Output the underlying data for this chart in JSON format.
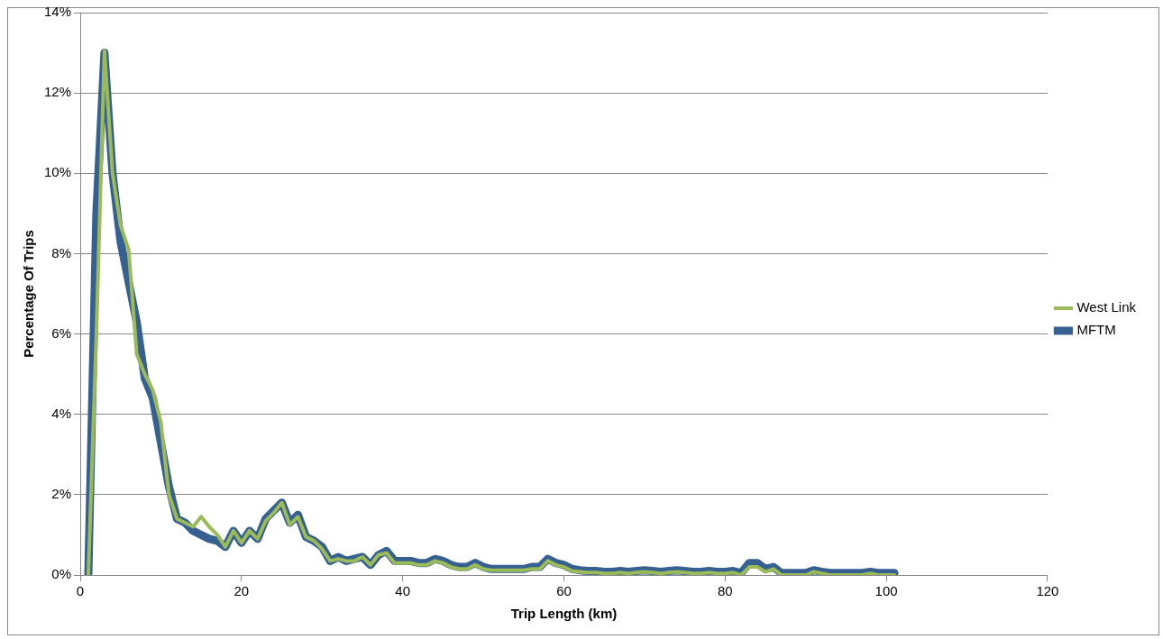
{
  "chart_data": {
    "type": "line",
    "xlabel": "Trip Length (km)",
    "ylabel": "Percentage Of Trips",
    "x": [
      1,
      2,
      3,
      4,
      5,
      6,
      7,
      8,
      9,
      10,
      11,
      12,
      13,
      14,
      15,
      16,
      17,
      18,
      19,
      20,
      21,
      22,
      23,
      24,
      25,
      26,
      27,
      28,
      29,
      30,
      31,
      32,
      33,
      34,
      35,
      36,
      37,
      38,
      39,
      40,
      41,
      42,
      43,
      44,
      45,
      46,
      47,
      48,
      49,
      50,
      51,
      52,
      53,
      54,
      55,
      56,
      57,
      58,
      59,
      60,
      61,
      62,
      63,
      64,
      65,
      66,
      67,
      68,
      69,
      70,
      71,
      72,
      73,
      74,
      75,
      76,
      77,
      78,
      79,
      80,
      81,
      82,
      83,
      84,
      85,
      86,
      87,
      88,
      89,
      90,
      91,
      92,
      93,
      94,
      95,
      96,
      97,
      98,
      99,
      100,
      101
    ],
    "series": [
      {
        "name": "MFTM",
        "color": "#376092",
        "values": [
          0,
          9,
          13,
          10,
          8.3,
          7.3,
          6.3,
          4.9,
          4.4,
          3.3,
          2.2,
          1.4,
          1.3,
          1.1,
          1,
          0.9,
          0.85,
          0.7,
          1.1,
          0.8,
          1.1,
          0.9,
          1.4,
          1.6,
          1.8,
          1.3,
          1.5,
          0.95,
          0.85,
          0.7,
          0.35,
          0.45,
          0.35,
          0.4,
          0.45,
          0.25,
          0.5,
          0.6,
          0.35,
          0.35,
          0.35,
          0.3,
          0.3,
          0.4,
          0.35,
          0.25,
          0.2,
          0.2,
          0.3,
          0.2,
          0.15,
          0.15,
          0.15,
          0.15,
          0.15,
          0.2,
          0.2,
          0.4,
          0.3,
          0.25,
          0.15,
          0.12,
          0.1,
          0.1,
          0.08,
          0.08,
          0.1,
          0.08,
          0.1,
          0.12,
          0.1,
          0.08,
          0.1,
          0.12,
          0.1,
          0.08,
          0.08,
          0.1,
          0.08,
          0.08,
          0.1,
          0.05,
          0.3,
          0.3,
          0.15,
          0.2,
          0.05,
          0.05,
          0.05,
          0.05,
          0.12,
          0.08,
          0.05,
          0.05,
          0.05,
          0.05,
          0.05,
          0.08,
          0.05,
          0.05,
          0.05
        ]
      },
      {
        "name": "West Link",
        "color": "#9bbb59",
        "values": [
          0,
          6,
          13.05,
          10,
          8.7,
          8.1,
          5.5,
          5,
          4.6,
          3.8,
          2,
          1.4,
          1.3,
          1.2,
          1.45,
          1.2,
          1,
          0.7,
          1.1,
          0.8,
          1.1,
          0.9,
          1.35,
          1.55,
          1.8,
          1.25,
          1.45,
          0.95,
          0.85,
          0.65,
          0.35,
          0.4,
          0.35,
          0.35,
          0.45,
          0.25,
          0.5,
          0.55,
          0.3,
          0.3,
          0.3,
          0.25,
          0.25,
          0.35,
          0.3,
          0.2,
          0.15,
          0.15,
          0.25,
          0.15,
          0.12,
          0.12,
          0.12,
          0.12,
          0.12,
          0.15,
          0.15,
          0.35,
          0.25,
          0.2,
          0.1,
          0.08,
          0.06,
          0.06,
          0.04,
          0.04,
          0.06,
          0.04,
          0.06,
          0.08,
          0.06,
          0.04,
          0.06,
          0.08,
          0.06,
          0.04,
          0.04,
          0.06,
          0.04,
          0.04,
          0.06,
          0,
          0.2,
          0.2,
          0.08,
          0.15,
          0,
          0,
          0,
          0,
          0.08,
          0.04,
          0,
          0,
          0,
          0,
          0,
          0.04,
          0,
          0,
          0
        ]
      }
    ],
    "xlim": [
      0,
      120
    ],
    "xticks": [
      0,
      20,
      40,
      60,
      80,
      100,
      120
    ],
    "ylim": [
      0,
      14
    ],
    "yticks": [
      {
        "value": 0,
        "label": "0%"
      },
      {
        "value": 2,
        "label": "2%"
      },
      {
        "value": 4,
        "label": "4%"
      },
      {
        "value": 6,
        "label": "6%"
      },
      {
        "value": 8,
        "label": "8%"
      },
      {
        "value": 10,
        "label": "10%"
      },
      {
        "value": 12,
        "label": "12%"
      },
      {
        "value": 14,
        "label": "14%"
      }
    ],
    "grid": "y",
    "legend": "right",
    "marker": "none",
    "line_style": "solid"
  }
}
